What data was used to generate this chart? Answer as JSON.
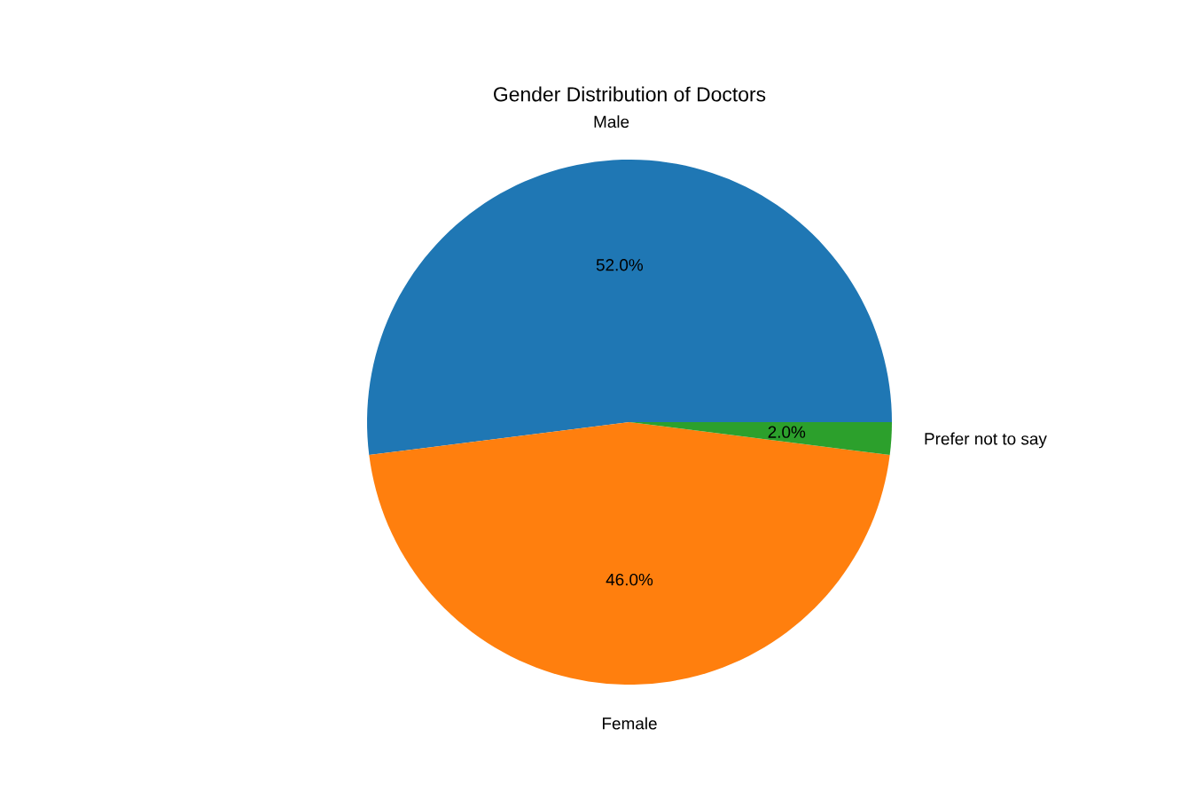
{
  "chart_data": {
    "type": "pie",
    "title": "Gender Distribution of Doctors",
    "categories": [
      "Male",
      "Female",
      "Prefer not to say"
    ],
    "values": [
      52,
      46,
      2
    ],
    "value_labels": [
      "52.0%",
      "46.0%",
      "2.0%"
    ],
    "colors": [
      "#1f77b4",
      "#ff7f0e",
      "#2ca02c"
    ]
  }
}
